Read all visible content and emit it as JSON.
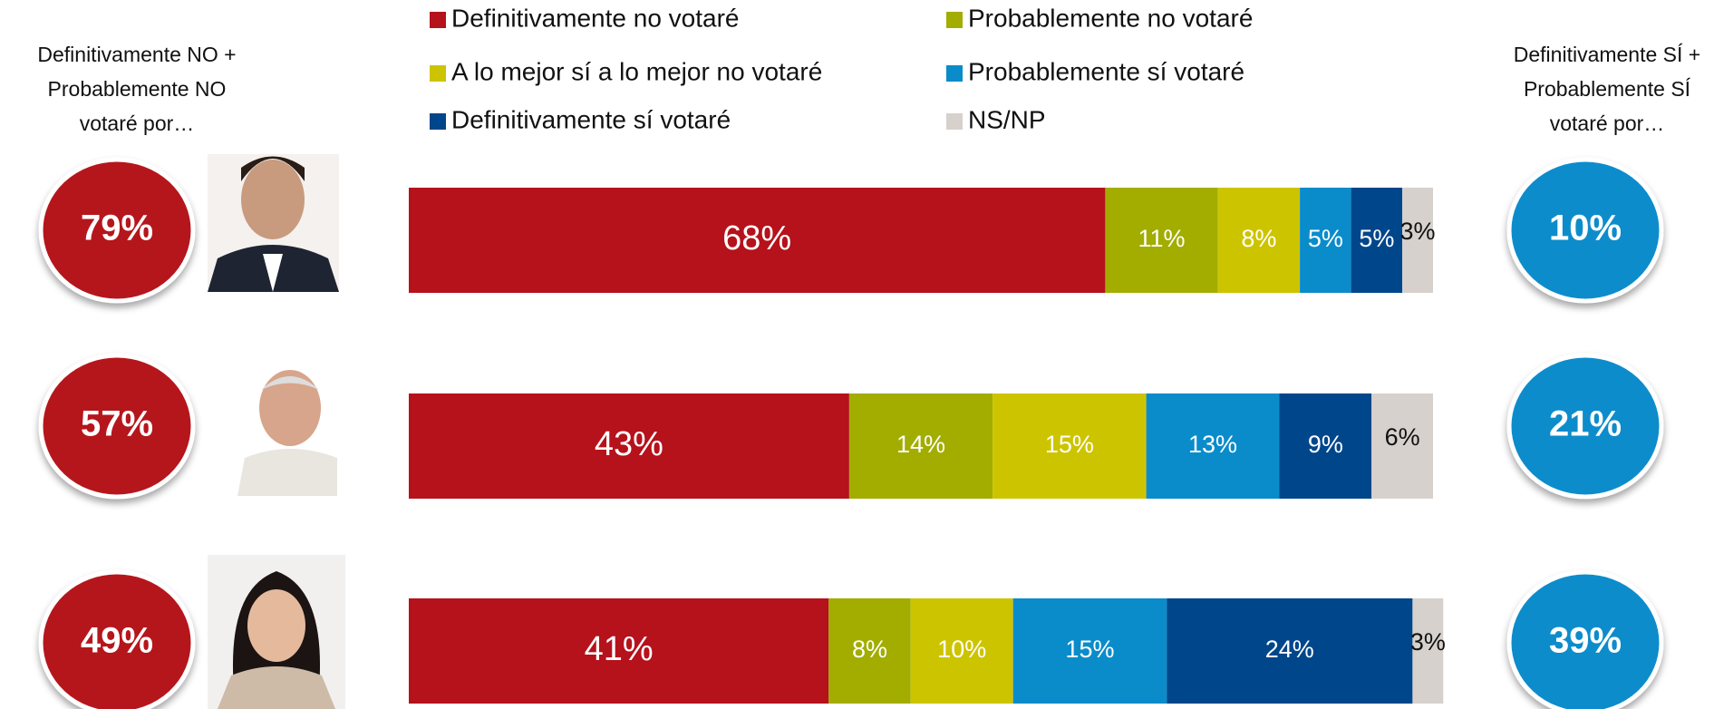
{
  "chart_data": {
    "type": "bar",
    "orientation": "horizontal",
    "stacked": true,
    "legend": "top",
    "categories": [
      null,
      null,
      null
    ],
    "xlim": [
      0,
      100
    ],
    "series": [
      {
        "name": "Definitivamente no votaré",
        "color": "#b5121b",
        "values": [
          68,
          43,
          41
        ],
        "value_labels": [
          "68%",
          "43%",
          "41%"
        ]
      },
      {
        "name": "Probablemente no votaré",
        "color": "#a2ad00",
        "values": [
          11,
          14,
          8
        ],
        "value_labels": [
          "11%",
          "14%",
          "8%"
        ]
      },
      {
        "name": "A lo mejor sí a lo mejor no votaré",
        "color": "#cdc400",
        "values": [
          8,
          15,
          10
        ],
        "value_labels": [
          "8%",
          "15%",
          "10%"
        ]
      },
      {
        "name": "Probablemente sí votaré",
        "color": "#0a8ccb",
        "values": [
          5,
          13,
          15
        ],
        "value_labels": [
          "5%",
          "13%",
          "15%"
        ]
      },
      {
        "name": "Definitivamente sí votaré",
        "color": "#00468b",
        "values": [
          5,
          9,
          24
        ],
        "value_labels": [
          "5%",
          "9%",
          "24%"
        ]
      },
      {
        "name": "NS/NP",
        "color": "#d6d1cd",
        "values": [
          3,
          6,
          3
        ],
        "value_labels": [
          "3%",
          "6%",
          "3%"
        ]
      }
    ],
    "left_summary": {
      "title": [
        "Definitivamente NO +",
        "Probablemente NO",
        "votaré por…"
      ],
      "color": "#b5121b",
      "values": [
        79,
        57,
        49
      ],
      "value_labels": [
        "79%",
        "57%",
        "49%"
      ]
    },
    "right_summary": {
      "title": [
        "Definitivamente SÍ +",
        "Probablemente SÍ",
        "votaré por…"
      ],
      "color": "#0a8ccb",
      "values": [
        10,
        21,
        39
      ],
      "value_labels": [
        "10%",
        "21%",
        "39%"
      ]
    }
  }
}
